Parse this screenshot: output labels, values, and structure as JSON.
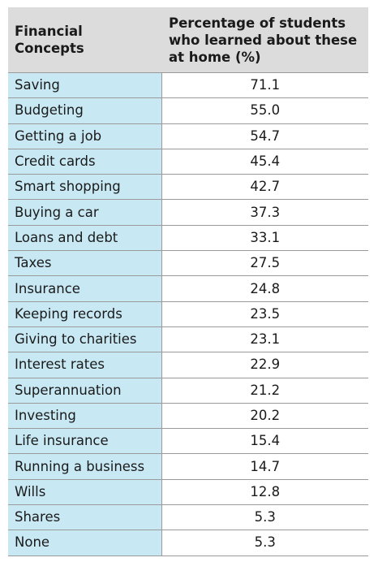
{
  "chart_data": {
    "type": "table",
    "columns": [
      "Financial Concepts",
      "Percentage of students who learned about these at home (%)"
    ],
    "header": {
      "col1_line1": "Financial",
      "col1_line2": "Concepts",
      "col2_line1": "Percentage of students",
      "col2_line2": "who learned about these",
      "col2_line3": "at home (%)"
    },
    "rows": [
      {
        "concept": "Saving",
        "value": "71.1"
      },
      {
        "concept": "Budgeting",
        "value": "55.0"
      },
      {
        "concept": "Getting a job",
        "value": "54.7"
      },
      {
        "concept": "Credit cards",
        "value": "45.4"
      },
      {
        "concept": "Smart shopping",
        "value": "42.7"
      },
      {
        "concept": "Buying a car",
        "value": "37.3"
      },
      {
        "concept": "Loans and debt",
        "value": "33.1"
      },
      {
        "concept": "Taxes",
        "value": "27.5"
      },
      {
        "concept": "Insurance",
        "value": "24.8"
      },
      {
        "concept": "Keeping records",
        "value": "23.5"
      },
      {
        "concept": "Giving to charities",
        "value": "23.1"
      },
      {
        "concept": "Interest rates",
        "value": "22.9"
      },
      {
        "concept": "Superannuation",
        "value": "21.2"
      },
      {
        "concept": "Investing",
        "value": "20.2"
      },
      {
        "concept": "Life insurance",
        "value": "15.4"
      },
      {
        "concept": "Running a business",
        "value": "14.7"
      },
      {
        "concept": "Wills",
        "value": "12.8"
      },
      {
        "concept": "Shares",
        "value": "5.3"
      },
      {
        "concept": "None",
        "value": "5.3"
      }
    ],
    "colors": {
      "header_bg": "#dcdcdc",
      "first_column_bg": "#c8e8f3",
      "value_column_bg": "#ffffff",
      "rule_color": "#9a9a9a"
    }
  }
}
